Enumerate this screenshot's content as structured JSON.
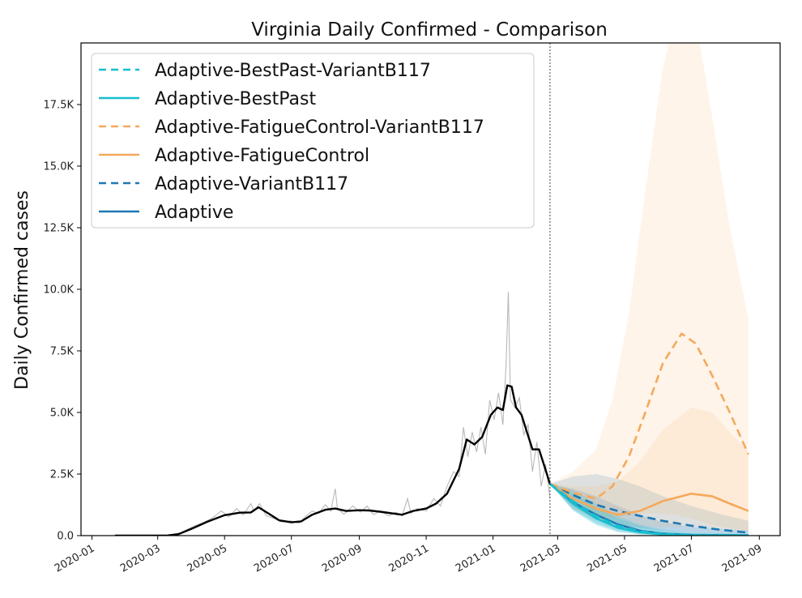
{
  "chart_data": {
    "type": "line",
    "title": "Virginia Daily Confirmed - Comparison",
    "xlabel": "",
    "ylabel": "Daily Confirmed cases",
    "x_axis": "date",
    "xlim": [
      "2019-12-22",
      "2021-09-20"
    ],
    "ylim": [
      0,
      20000
    ],
    "x_ticks": [
      "2020-01",
      "2020-03",
      "2020-05",
      "2020-07",
      "2020-09",
      "2020-11",
      "2021-01",
      "2021-03",
      "2021-05",
      "2021-07",
      "2021-09"
    ],
    "y_ticks": [
      0,
      2500,
      5000,
      7500,
      10000,
      12500,
      15000,
      17500
    ],
    "y_tick_labels": [
      "0.0",
      "2.5K",
      "5.0K",
      "7.5K",
      "10.0K",
      "12.5K",
      "15.0K",
      "17.5K"
    ],
    "forecast_start": "2021-02-22",
    "legend_position": "top-left",
    "grid": false,
    "observed": {
      "raw_color": "#b8b8b8",
      "smoothed_color": "#000000",
      "smoothed": [
        [
          "2020-01-22",
          0
        ],
        [
          "2020-03-10",
          5
        ],
        [
          "2020-03-20",
          60
        ],
        [
          "2020-04-01",
          280
        ],
        [
          "2020-04-15",
          560
        ],
        [
          "2020-05-01",
          830
        ],
        [
          "2020-05-15",
          930
        ],
        [
          "2020-05-25",
          940
        ],
        [
          "2020-06-01",
          1150
        ],
        [
          "2020-06-10",
          900
        ],
        [
          "2020-06-20",
          620
        ],
        [
          "2020-07-01",
          540
        ],
        [
          "2020-07-10",
          580
        ],
        [
          "2020-07-20",
          850
        ],
        [
          "2020-08-01",
          1050
        ],
        [
          "2020-08-10",
          1100
        ],
        [
          "2020-08-20",
          1000
        ],
        [
          "2020-09-01",
          1030
        ],
        [
          "2020-09-10",
          1020
        ],
        [
          "2020-09-20",
          970
        ],
        [
          "2020-10-01",
          900
        ],
        [
          "2020-10-10",
          850
        ],
        [
          "2020-10-20",
          1000
        ],
        [
          "2020-11-01",
          1100
        ],
        [
          "2020-11-10",
          1300
        ],
        [
          "2020-11-20",
          1700
        ],
        [
          "2020-12-01",
          2700
        ],
        [
          "2020-12-08",
          3900
        ],
        [
          "2020-12-15",
          3700
        ],
        [
          "2020-12-22",
          4000
        ],
        [
          "2020-12-30",
          4900
        ],
        [
          "2021-01-05",
          5200
        ],
        [
          "2021-01-10",
          5100
        ],
        [
          "2021-01-14",
          6100
        ],
        [
          "2021-01-18",
          6050
        ],
        [
          "2021-01-22",
          5200
        ],
        [
          "2021-01-27",
          4900
        ],
        [
          "2021-02-01",
          4200
        ],
        [
          "2021-02-06",
          3500
        ],
        [
          "2021-02-12",
          3500
        ],
        [
          "2021-02-17",
          2800
        ],
        [
          "2021-02-22",
          2100
        ]
      ],
      "raw": [
        [
          "2020-01-22",
          0
        ],
        [
          "2020-03-10",
          10
        ],
        [
          "2020-03-22",
          120
        ],
        [
          "2020-04-03",
          380
        ],
        [
          "2020-04-12",
          540
        ],
        [
          "2020-04-20",
          720
        ],
        [
          "2020-04-28",
          1000
        ],
        [
          "2020-05-05",
          760
        ],
        [
          "2020-05-12",
          1100
        ],
        [
          "2020-05-18",
          840
        ],
        [
          "2020-05-25",
          1300
        ],
        [
          "2020-05-28",
          1000
        ],
        [
          "2020-06-02",
          1300
        ],
        [
          "2020-06-08",
          800
        ],
        [
          "2020-06-15",
          700
        ],
        [
          "2020-06-22",
          560
        ],
        [
          "2020-06-30",
          600
        ],
        [
          "2020-07-08",
          500
        ],
        [
          "2020-07-14",
          780
        ],
        [
          "2020-07-20",
          1000
        ],
        [
          "2020-07-26",
          900
        ],
        [
          "2020-08-01",
          1250
        ],
        [
          "2020-08-06",
          1000
        ],
        [
          "2020-08-10",
          1900
        ],
        [
          "2020-08-12",
          1100
        ],
        [
          "2020-08-18",
          870
        ],
        [
          "2020-08-26",
          1200
        ],
        [
          "2020-09-02",
          950
        ],
        [
          "2020-09-08",
          1200
        ],
        [
          "2020-09-14",
          850
        ],
        [
          "2020-09-20",
          1000
        ],
        [
          "2020-09-28",
          800
        ],
        [
          "2020-10-04",
          950
        ],
        [
          "2020-10-10",
          800
        ],
        [
          "2020-10-15",
          1500
        ],
        [
          "2020-10-18",
          900
        ],
        [
          "2020-10-24",
          1100
        ],
        [
          "2020-11-01",
          1000
        ],
        [
          "2020-11-08",
          1500
        ],
        [
          "2020-11-14",
          1200
        ],
        [
          "2020-11-20",
          2000
        ],
        [
          "2020-11-26",
          2600
        ],
        [
          "2020-12-01",
          2400
        ],
        [
          "2020-12-05",
          4400
        ],
        [
          "2020-12-09",
          3200
        ],
        [
          "2020-12-13",
          4200
        ],
        [
          "2020-12-17",
          3400
        ],
        [
          "2020-12-21",
          4400
        ],
        [
          "2020-12-25",
          3300
        ],
        [
          "2020-12-29",
          5500
        ],
        [
          "2021-01-02",
          4700
        ],
        [
          "2021-01-06",
          5800
        ],
        [
          "2021-01-10",
          4500
        ],
        [
          "2021-01-13",
          7000
        ],
        [
          "2021-01-15",
          9900
        ],
        [
          "2021-01-17",
          5500
        ],
        [
          "2021-01-21",
          5200
        ],
        [
          "2021-01-25",
          5600
        ],
        [
          "2021-01-29",
          4100
        ],
        [
          "2021-02-02",
          4500
        ],
        [
          "2021-02-06",
          2600
        ],
        [
          "2021-02-10",
          3800
        ],
        [
          "2021-02-14",
          2000
        ],
        [
          "2021-02-18",
          2900
        ],
        [
          "2021-02-22",
          1500
        ]
      ]
    },
    "series": [
      {
        "name": "Adaptive-BestPast-VariantB117",
        "color": "#17becf",
        "dashed": true,
        "points": [
          [
            "2021-02-22",
            2100
          ],
          [
            "2021-03-15",
            1400
          ],
          [
            "2021-04-05",
            800
          ],
          [
            "2021-04-25",
            400
          ],
          [
            "2021-05-15",
            180
          ],
          [
            "2021-06-05",
            70
          ],
          [
            "2021-07-01",
            25
          ],
          [
            "2021-08-22",
            10
          ]
        ],
        "band": {
          "lower": [
            2100,
            1050,
            450,
            150,
            50,
            15,
            5,
            0
          ],
          "upper": [
            2100,
            1850,
            1300,
            800,
            450,
            250,
            120,
            60
          ]
        }
      },
      {
        "name": "Adaptive-BestPast",
        "color": "#17becf",
        "dashed": false,
        "points": [
          [
            "2021-02-22",
            2100
          ],
          [
            "2021-03-15",
            1300
          ],
          [
            "2021-04-05",
            700
          ],
          [
            "2021-04-25",
            320
          ],
          [
            "2021-05-15",
            130
          ],
          [
            "2021-06-05",
            50
          ],
          [
            "2021-07-01",
            18
          ],
          [
            "2021-08-22",
            5
          ]
        ],
        "band": {
          "lower": [
            2100,
            1000,
            420,
            130,
            40,
            10,
            3,
            0
          ],
          "upper": [
            2100,
            1700,
            1150,
            700,
            400,
            200,
            100,
            50
          ]
        }
      },
      {
        "name": "Adaptive-FatigueControl-VariantB117",
        "color": "#f4a95b",
        "dashed": true,
        "points": [
          [
            "2021-02-22",
            2100
          ],
          [
            "2021-03-15",
            1750
          ],
          [
            "2021-04-05",
            1500
          ],
          [
            "2021-04-20",
            2000
          ],
          [
            "2021-05-05",
            3200
          ],
          [
            "2021-05-20",
            5000
          ],
          [
            "2021-06-05",
            7000
          ],
          [
            "2021-06-22",
            8200
          ],
          [
            "2021-07-05",
            7800
          ],
          [
            "2021-07-20",
            6500
          ],
          [
            "2021-08-05",
            5000
          ],
          [
            "2021-08-22",
            3300
          ]
        ],
        "band": {
          "lower": [
            2100,
            1300,
            800,
            700,
            800,
            900,
            900,
            800,
            650,
            450,
            300,
            150
          ],
          "upper": [
            2100,
            2600,
            3500,
            5500,
            9000,
            14000,
            19000,
            22000,
            21000,
            17000,
            12500,
            8800
          ]
        }
      },
      {
        "name": "Adaptive-FatigueControl",
        "color": "#f4a95b",
        "dashed": false,
        "points": [
          [
            "2021-02-22",
            2100
          ],
          [
            "2021-03-15",
            1500
          ],
          [
            "2021-04-05",
            1100
          ],
          [
            "2021-04-25",
            850
          ],
          [
            "2021-05-15",
            1000
          ],
          [
            "2021-06-05",
            1400
          ],
          [
            "2021-07-01",
            1700
          ],
          [
            "2021-07-20",
            1600
          ],
          [
            "2021-08-05",
            1300
          ],
          [
            "2021-08-22",
            1000
          ]
        ],
        "band": {
          "lower": [
            2100,
            1100,
            650,
            400,
            350,
            350,
            350,
            300,
            250,
            200
          ],
          "upper": [
            2100,
            2000,
            2000,
            2200,
            3000,
            4300,
            5200,
            5000,
            4200,
            3400
          ]
        }
      },
      {
        "name": "Adaptive-VariantB117",
        "color": "#1f77b4",
        "dashed": true,
        "points": [
          [
            "2021-02-22",
            2100
          ],
          [
            "2021-03-15",
            1650
          ],
          [
            "2021-04-05",
            1250
          ],
          [
            "2021-04-25",
            1000
          ],
          [
            "2021-05-15",
            800
          ],
          [
            "2021-06-05",
            600
          ],
          [
            "2021-07-01",
            400
          ],
          [
            "2021-07-25",
            250
          ],
          [
            "2021-08-22",
            120
          ]
        ],
        "band": {
          "lower": [
            2100,
            1150,
            700,
            450,
            300,
            200,
            120,
            70,
            30
          ],
          "upper": [
            2100,
            2400,
            2500,
            2300,
            2000,
            1600,
            1200,
            900,
            600
          ]
        }
      },
      {
        "name": "Adaptive",
        "color": "#1f77b4",
        "dashed": false,
        "points": [
          [
            "2021-02-22",
            2100
          ],
          [
            "2021-03-15",
            1350
          ],
          [
            "2021-04-05",
            850
          ],
          [
            "2021-04-25",
            450
          ],
          [
            "2021-05-15",
            200
          ],
          [
            "2021-06-05",
            80
          ],
          [
            "2021-07-01",
            30
          ],
          [
            "2021-08-22",
            10
          ]
        ],
        "band": {
          "lower": [
            2100,
            1050,
            520,
            200,
            70,
            20,
            5,
            0
          ],
          "upper": [
            2100,
            1900,
            1600,
            1200,
            850,
            550,
            350,
            200
          ]
        }
      }
    ]
  }
}
